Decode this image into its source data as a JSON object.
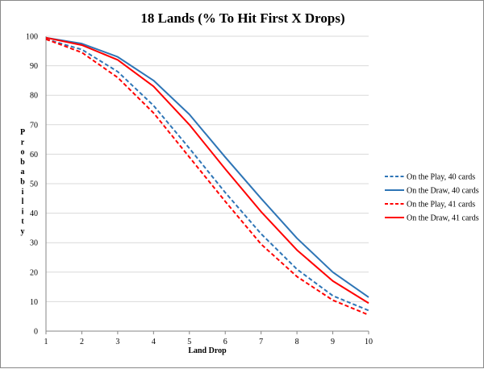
{
  "chart_data": {
    "type": "line",
    "title": "18 Lands (% To Hit First X Drops)",
    "xlabel": "Land Drop",
    "ylabel": "Probability",
    "x": [
      1,
      2,
      3,
      4,
      5,
      6,
      7,
      8,
      9,
      10
    ],
    "xlim": [
      1,
      10
    ],
    "ylim": [
      0,
      100
    ],
    "yticks": [
      0,
      10,
      20,
      30,
      40,
      50,
      60,
      70,
      80,
      90,
      100
    ],
    "grid": true,
    "legend_position": "right",
    "series": [
      {
        "name": "On the Play, 40 cards",
        "color": "#2E75B6",
        "dash": true,
        "values": [
          99.0,
          95.5,
          88.0,
          76.5,
          62.0,
          47.0,
          33.0,
          21.0,
          12.0,
          7.0
        ]
      },
      {
        "name": "On the Draw, 40 cards",
        "color": "#2E75B6",
        "dash": false,
        "values": [
          99.5,
          97.5,
          93.0,
          85.0,
          73.5,
          59.0,
          45.0,
          31.5,
          20.0,
          11.5
        ]
      },
      {
        "name": "On the Play, 41 cards",
        "color": "#FF0000",
        "dash": true,
        "values": [
          99.0,
          94.5,
          86.0,
          74.0,
          59.0,
          44.0,
          29.5,
          18.5,
          10.5,
          5.5
        ]
      },
      {
        "name": "On the Draw, 41 cards",
        "color": "#FF0000",
        "dash": false,
        "values": [
          99.5,
          97.0,
          92.0,
          83.0,
          70.0,
          55.0,
          40.5,
          27.5,
          17.0,
          9.5
        ]
      }
    ]
  }
}
